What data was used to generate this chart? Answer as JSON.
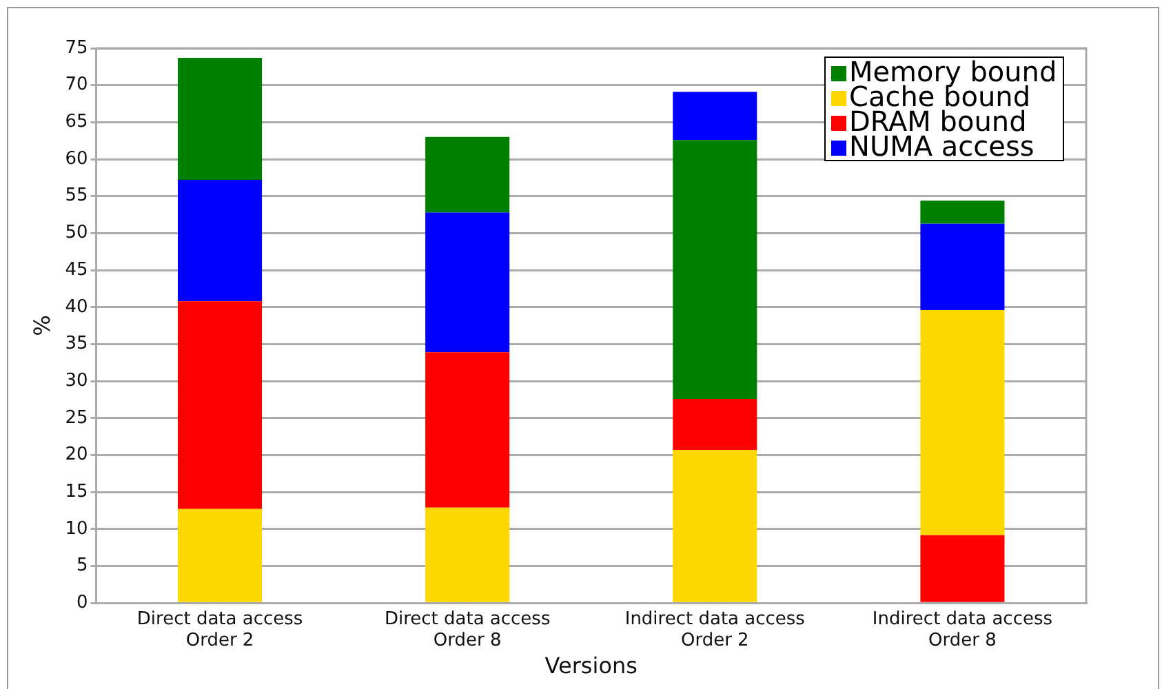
{
  "chart_data": {
    "type": "bar",
    "xlabel": "Versions",
    "ylabel": "%",
    "categories": [
      "Direct data access\nOrder 2",
      "Direct data access\nOrder 8",
      "Indirect data access\nOrder 2",
      "Indirect data access\nOrder 8"
    ],
    "series": [
      {
        "name": "Memory bound",
        "color": "#008000",
        "base": [
          57.2,
          52.8,
          27.6,
          51.3
        ],
        "values": [
          16.5,
          10.2,
          35.0,
          3.1
        ]
      },
      {
        "name": "Cache bound",
        "color": "#ffd700",
        "base": [
          0,
          0,
          0,
          9.2
        ],
        "values": [
          12.7,
          12.9,
          20.7,
          30.4
        ]
      },
      {
        "name": "DRAM bound",
        "color": "#ff0000",
        "base": [
          12.7,
          12.9,
          20.7,
          0
        ],
        "values": [
          28.1,
          21.0,
          6.9,
          9.2
        ]
      },
      {
        "name": "NUMA access",
        "color": "#0000ff",
        "base": [
          40.8,
          33.9,
          62.6,
          39.6
        ],
        "values": [
          16.4,
          18.9,
          6.5,
          11.7
        ]
      }
    ],
    "ylim": [
      0,
      75
    ],
    "yticks": [
      0,
      5,
      10,
      15,
      20,
      25,
      30,
      35,
      40,
      45,
      50,
      55,
      60,
      65,
      70,
      75
    ],
    "grid": "y",
    "legend": "top right"
  }
}
